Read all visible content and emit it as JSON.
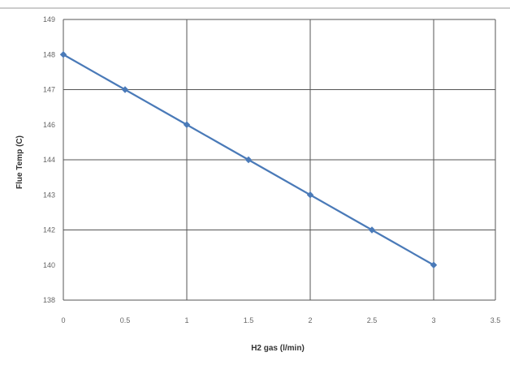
{
  "chart_data": {
    "type": "line",
    "title": "",
    "xlabel": "H2 gas (l/min)",
    "ylabel": "Flue Temp (C)",
    "x": [
      0,
      0.5,
      1,
      1.5,
      2,
      2.5,
      3
    ],
    "series": [
      {
        "values": [
          148,
          147,
          146,
          144,
          143,
          142,
          140
        ],
        "color": "#4a7ab8"
      }
    ],
    "xlim": [
      0,
      3.5
    ],
    "ylim": [
      138,
      149
    ],
    "x_ticks": [
      "0",
      "0.5",
      "1",
      "1.5",
      "2",
      "2.5",
      "3",
      "3.5"
    ],
    "y_ticks": [
      "138",
      "140",
      "142",
      "143",
      "144",
      "146",
      "147",
      "148",
      "149"
    ],
    "grid": true,
    "marker": "diamond",
    "smooth": true
  },
  "colors": {
    "line": "#4a7ab8",
    "grid": "#555555",
    "frame": "#999999"
  }
}
